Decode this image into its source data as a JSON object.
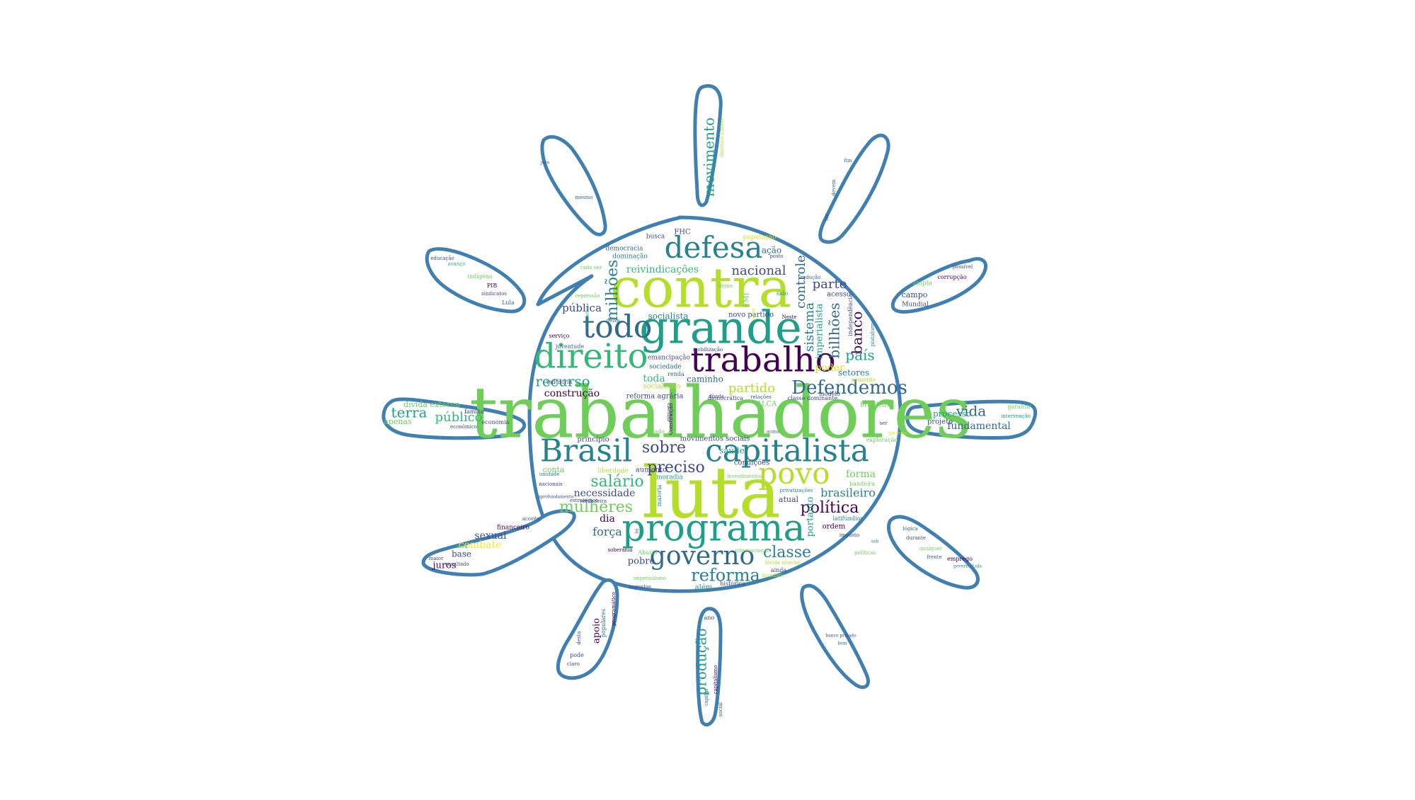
{
  "palette": {
    "outline": "#3f7fb2",
    "colors": [
      "#440154",
      "#3e4a89",
      "#31688e",
      "#26828e",
      "#1f9e89",
      "#35b779",
      "#6ece58",
      "#b5de2b",
      "#d8e219",
      "#fde725"
    ]
  },
  "words": [
    {
      "text": "trabalhadores",
      "size": 100,
      "color": 6
    },
    {
      "text": "luta",
      "size": 100,
      "color": 7
    },
    {
      "text": "contra",
      "size": 78,
      "color": 7
    },
    {
      "text": "grande",
      "size": 64,
      "color": 4
    },
    {
      "text": "programa",
      "size": 52,
      "color": 4
    },
    {
      "text": "trabalho",
      "size": 48,
      "color": 0
    },
    {
      "text": "direito",
      "size": 48,
      "color": 5
    },
    {
      "text": "capitalista",
      "size": 44,
      "color": 3
    },
    {
      "text": "Brasil",
      "size": 44,
      "color": 3
    },
    {
      "text": "todo",
      "size": 44,
      "color": 2
    },
    {
      "text": "povo",
      "size": 42,
      "color": 7
    },
    {
      "text": "defesa",
      "size": 42,
      "color": 3
    },
    {
      "text": "governo",
      "size": 36,
      "color": 2
    },
    {
      "text": "Defendemos",
      "size": 26,
      "color": 2
    },
    {
      "text": "reforma",
      "size": 24,
      "color": 3
    },
    {
      "text": "classe",
      "size": 22,
      "color": 3
    },
    {
      "text": "mulheres",
      "size": 22,
      "color": 6
    },
    {
      "text": "salário",
      "size": 22,
      "color": 5
    },
    {
      "text": "política",
      "size": 22,
      "color": 0
    },
    {
      "text": "milhões",
      "size": 22,
      "color": 3
    },
    {
      "text": "sobre",
      "size": 22,
      "color": 1
    },
    {
      "text": "preciso",
      "size": 22,
      "color": 1
    },
    {
      "text": "movimento",
      "size": 20,
      "color": 4
    },
    {
      "text": "terra",
      "size": 20,
      "color": 4
    },
    {
      "text": "país",
      "size": 20,
      "color": 4
    },
    {
      "text": "recurso",
      "size": 20,
      "color": 4
    },
    {
      "text": "banco",
      "size": 20,
      "color": 0
    },
    {
      "text": "billhões",
      "size": 20,
      "color": 2
    },
    {
      "text": "vida",
      "size": 20,
      "color": 2
    },
    {
      "text": "produção",
      "size": 20,
      "color": 4
    },
    {
      "text": "partido",
      "size": 18,
      "color": 7
    },
    {
      "text": "controle",
      "size": 18,
      "color": 2
    },
    {
      "text": "sistema",
      "size": 18,
      "color": 3
    },
    {
      "text": "parte",
      "size": 18,
      "color": 1
    },
    {
      "text": "nacional",
      "size": 18,
      "color": 1
    },
    {
      "text": "público",
      "size": 18,
      "color": 5
    },
    {
      "text": "brasileiro",
      "size": 16,
      "color": 3
    },
    {
      "text": "necessidade",
      "size": 14,
      "color": 1
    },
    {
      "text": "fundamental",
      "size": 14,
      "color": 2
    },
    {
      "text": "força",
      "size": 16,
      "color": 2
    },
    {
      "text": "poder",
      "size": 14,
      "color": 8
    },
    {
      "text": "pública",
      "size": 15,
      "color": 1
    },
    {
      "text": "forma",
      "size": 14,
      "color": 6
    },
    {
      "text": "reivindicações",
      "size": 14,
      "color": 5
    },
    {
      "text": "construção",
      "size": 14,
      "color": 0
    },
    {
      "text": "sexual",
      "size": 14,
      "color": 1
    },
    {
      "text": "combate",
      "size": 14,
      "color": 9
    },
    {
      "text": "juros",
      "size": 13,
      "color": 0
    },
    {
      "text": "toda",
      "size": 14,
      "color": 5
    },
    {
      "text": "dia",
      "size": 14,
      "color": 0
    },
    {
      "text": "pobre",
      "size": 13,
      "color": 1
    },
    {
      "text": "apoio",
      "size": 13,
      "color": 0
    },
    {
      "text": "portanto",
      "size": 13,
      "color": 4
    },
    {
      "text": "imperialista",
      "size": 13,
      "color": 4
    },
    {
      "text": "socialista",
      "size": 12,
      "color": 3
    },
    {
      "text": "caminho",
      "size": 12,
      "color": 2
    },
    {
      "text": "setores",
      "size": 12,
      "color": 3
    },
    {
      "text": "ação",
      "size": 12,
      "color": 2
    },
    {
      "text": "saúde",
      "size": 12,
      "color": 4
    },
    {
      "text": "atual",
      "size": 11,
      "color": 1
    },
    {
      "text": "ordem",
      "size": 10,
      "color": 0
    },
    {
      "text": "acesso",
      "size": 10,
      "color": 1
    },
    {
      "text": "base",
      "size": 12,
      "color": 1
    },
    {
      "text": "campo",
      "size": 11,
      "color": 1
    },
    {
      "text": "dívida externa",
      "size": 11,
      "color": 6
    },
    {
      "text": "apenas",
      "size": 11,
      "color": 6
    },
    {
      "text": "novo partido",
      "size": 10,
      "color": 1
    },
    {
      "text": "socialismo",
      "size": 10,
      "color": 7
    },
    {
      "text": "reforma agrária",
      "size": 10,
      "color": 1
    },
    {
      "text": "movimentos sociais",
      "size": 10,
      "color": 1
    },
    {
      "text": "princípio",
      "size": 10,
      "color": 1
    },
    {
      "text": "processo",
      "size": 12,
      "color": 4
    },
    {
      "text": "projeto",
      "size": 10,
      "color": 1
    },
    {
      "text": "democracia",
      "size": 9,
      "color": 2
    },
    {
      "text": "dominação",
      "size": 9,
      "color": 3
    },
    {
      "text": "população",
      "size": 9,
      "color": 8
    },
    {
      "text": "busca",
      "size": 9,
      "color": 1
    },
    {
      "text": "FHC",
      "size": 10,
      "color": 1
    },
    {
      "text": "FMI",
      "size": 10,
      "color": 6
    },
    {
      "text": "ALCA",
      "size": 10,
      "color": 6
    },
    {
      "text": "condições",
      "size": 10,
      "color": 1
    },
    {
      "text": "aumento",
      "size": 10,
      "color": 1
    },
    {
      "text": "liberdade",
      "size": 9,
      "color": 7
    },
    {
      "text": "conta",
      "size": 11,
      "color": 6
    },
    {
      "text": "moradia",
      "size": 9,
      "color": 4
    },
    {
      "text": "ampla",
      "size": 9,
      "color": 6
    },
    {
      "text": "Mundial",
      "size": 9,
      "color": 1
    },
    {
      "text": "sociedade",
      "size": 9,
      "color": 2
    },
    {
      "text": "emancipação",
      "size": 9,
      "color": 1
    },
    {
      "text": "indústria",
      "size": 8,
      "color": 1
    },
    {
      "text": "renda",
      "size": 8,
      "color": 2
    },
    {
      "text": "democrática",
      "size": 8,
      "color": 1
    },
    {
      "text": "classe dominante",
      "size": 8,
      "color": 1
    },
    {
      "text": "modelo",
      "size": 8,
      "color": 1
    },
    {
      "text": "somente",
      "size": 8,
      "color": 7
    },
    {
      "text": "brasileira",
      "size": 9,
      "color": 6
    },
    {
      "text": "educação",
      "size": 7,
      "color": 1
    },
    {
      "text": "avanço",
      "size": 7,
      "color": 5
    },
    {
      "text": "indígena",
      "size": 8,
      "color": 6
    },
    {
      "text": "PIB",
      "size": 8,
      "color": 0
    },
    {
      "text": "sindicatos",
      "size": 7,
      "color": 1
    },
    {
      "text": "Lula",
      "size": 8,
      "color": 2
    },
    {
      "text": "família",
      "size": 8,
      "color": 1
    },
    {
      "text": "economia",
      "size": 8,
      "color": 1
    },
    {
      "text": "econômico",
      "size": 7,
      "color": 1
    },
    {
      "text": "financeiro",
      "size": 9,
      "color": 0
    },
    {
      "text": "acordo",
      "size": 7,
      "color": 1
    },
    {
      "text": "maior",
      "size": 7,
      "color": 1
    },
    {
      "text": "nova",
      "size": 7,
      "color": 5
    },
    {
      "text": "resultado",
      "size": 7,
      "color": 1
    },
    {
      "text": "pode",
      "size": 8,
      "color": 1
    },
    {
      "text": "claro",
      "size": 7,
      "color": 1
    },
    {
      "text": "desta",
      "size": 7,
      "color": 1
    },
    {
      "text": "populares",
      "size": 8,
      "color": 2
    },
    {
      "text": "programático",
      "size": 7,
      "color": 0
    },
    {
      "text": "ano",
      "size": 8,
      "color": 1
    },
    {
      "text": "capital",
      "size": 7,
      "color": 2
    },
    {
      "text": "capitalismo",
      "size": 7,
      "color": 0
    },
    {
      "text": "social",
      "size": 7,
      "color": 1
    },
    {
      "text": "América Latina",
      "size": 7,
      "color": 7
    },
    {
      "text": "lógica",
      "size": 7,
      "color": 2
    },
    {
      "text": "durante",
      "size": 7,
      "color": 1
    },
    {
      "text": "qualquer",
      "size": 7,
      "color": 6
    },
    {
      "text": "frente",
      "size": 7,
      "color": 2
    },
    {
      "text": "emprego",
      "size": 8,
      "color": 0
    },
    {
      "text": "governo Lula",
      "size": 6,
      "color": 3
    },
    {
      "text": "corrupção",
      "size": 8,
      "color": 0
    },
    {
      "text": "possível",
      "size": 7,
      "color": 1
    },
    {
      "text": "garantir",
      "size": 8,
      "color": 6
    },
    {
      "text": "intervenção",
      "size": 7,
      "color": 4
    },
    {
      "text": "exploração",
      "size": 8,
      "color": 6
    },
    {
      "text": "bandeira",
      "size": 8,
      "color": 6
    },
    {
      "text": "latifúndios",
      "size": 8,
      "color": 3
    },
    {
      "text": "imposto",
      "size": 7,
      "color": 1
    },
    {
      "text": "soberania",
      "size": 7,
      "color": 0
    },
    {
      "text": "privatizações",
      "size": 7,
      "color": 3
    },
    {
      "text": "investimentos",
      "size": 7,
      "color": 6
    },
    {
      "text": "serviço",
      "size": 8,
      "color": 0
    },
    {
      "text": "juventude",
      "size": 8,
      "color": 2
    },
    {
      "text": "mobilização",
      "size": 7,
      "color": 1
    },
    {
      "text": "riqueza",
      "size": 7,
      "color": 1
    },
    {
      "text": "Estado",
      "size": 8,
      "color": 6
    },
    {
      "text": "histórica",
      "size": 8,
      "color": 1
    },
    {
      "text": "além",
      "size": 10,
      "color": 4
    },
    {
      "text": "impostos",
      "size": 7,
      "color": 1
    },
    {
      "text": "relações",
      "size": 7,
      "color": 2
    },
    {
      "text": "posto",
      "size": 7,
      "color": 1
    },
    {
      "text": "digna",
      "size": 7,
      "color": 6
    },
    {
      "text": "redução",
      "size": 7,
      "color": 2
    },
    {
      "text": "plataforma",
      "size": 7,
      "color": 3
    },
    {
      "text": "mesmo",
      "size": 7,
      "color": 2
    },
    {
      "text": "fim",
      "size": 7,
      "color": 3
    },
    {
      "text": "devem",
      "size": 7,
      "color": 2
    },
    {
      "text": "ter",
      "size": 7,
      "color": 1
    },
    {
      "text": "sido",
      "size": 8,
      "color": 4
    },
    {
      "text": "Neste",
      "size": 7,
      "color": 0
    },
    {
      "text": "deixa",
      "size": 7,
      "color": 2
    },
    {
      "text": "alternativa",
      "size": 6,
      "color": 4
    },
    {
      "text": "repressão",
      "size": 7,
      "color": 6
    },
    {
      "text": "cada vez",
      "size": 7,
      "color": 6
    },
    {
      "text": "nacionais",
      "size": 7,
      "color": 1
    },
    {
      "text": "unidade",
      "size": 7,
      "color": 3
    },
    {
      "text": "aprofundamento",
      "size": 6,
      "color": 1
    },
    {
      "text": "estratégico",
      "size": 7,
      "color": 1
    },
    {
      "text": "verdadeira",
      "size": 7,
      "color": 1
    },
    {
      "text": "independência",
      "size": 8,
      "color": 1
    },
    {
      "text": "maioria",
      "size": 8,
      "color": 3
    },
    {
      "text": "ainda",
      "size": 8,
      "color": 1
    },
    {
      "text": "Abaixo",
      "size": 8,
      "color": 6
    },
    {
      "text": "políticas",
      "size": 7,
      "color": 6
    },
    {
      "text": "internacional",
      "size": 7,
      "color": 6
    },
    {
      "text": "dívida interna",
      "size": 7,
      "color": 7
    },
    {
      "text": "imperialismo",
      "size": 7,
      "color": 6
    },
    {
      "text": "mandato",
      "size": 7,
      "color": 7
    },
    {
      "text": "Constituição",
      "size": 7,
      "color": 0
    },
    {
      "text": "dívida",
      "size": 7,
      "color": 1
    },
    {
      "text": "banco privado",
      "size": 6,
      "color": 1
    },
    {
      "text": "garantia",
      "size": 6,
      "color": 8
    },
    {
      "text": "bem",
      "size": 6,
      "color": 2
    },
    {
      "text": "ser",
      "size": 7,
      "color": 1
    },
    {
      "text": "lei",
      "size": 6,
      "color": 1
    },
    {
      "text": "juro",
      "size": 6,
      "color": 1
    },
    {
      "text": "acima",
      "size": 6,
      "color": 1
    },
    {
      "text": "sob",
      "size": 6,
      "color": 3
    },
    {
      "text": "agora",
      "size": 6,
      "color": 8
    }
  ]
}
